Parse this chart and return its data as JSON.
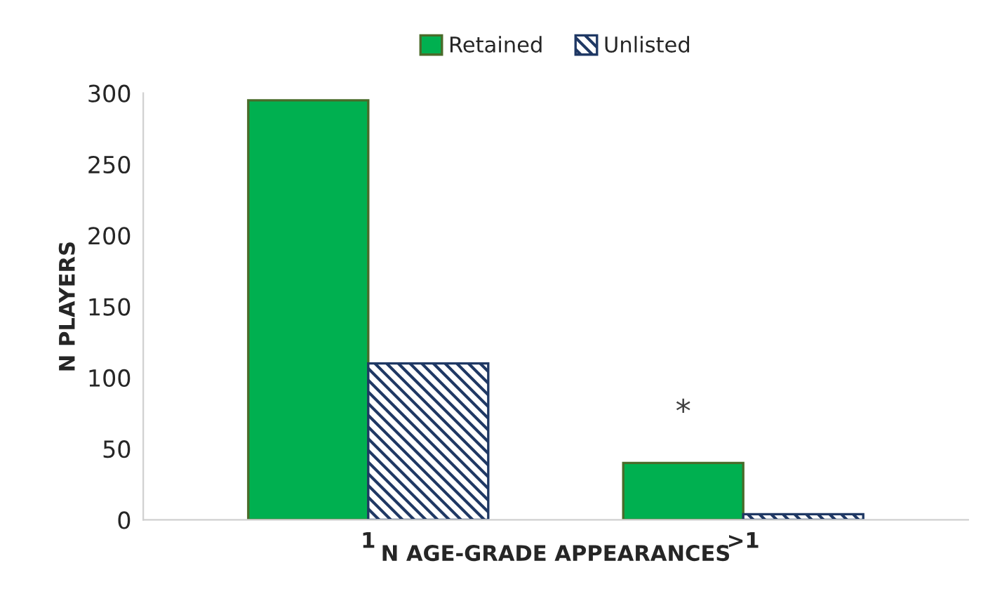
{
  "chart_data": {
    "type": "bar",
    "xlabel": "N AGE-GRADE APPEARANCES",
    "ylabel": "N PLAYERS",
    "categories": [
      "1",
      ">1"
    ],
    "series": [
      {
        "name": "Retained",
        "color": "#00b050",
        "values": [
          295,
          40
        ]
      },
      {
        "name": "Unlisted",
        "color": "#1f3864",
        "values": [
          110,
          4
        ]
      }
    ],
    "ylim": [
      0,
      300
    ],
    "yticks": [
      0,
      50,
      100,
      150,
      200,
      250,
      300
    ],
    "grid": false,
    "legend": "top",
    "annotations": [
      "*"
    ]
  }
}
